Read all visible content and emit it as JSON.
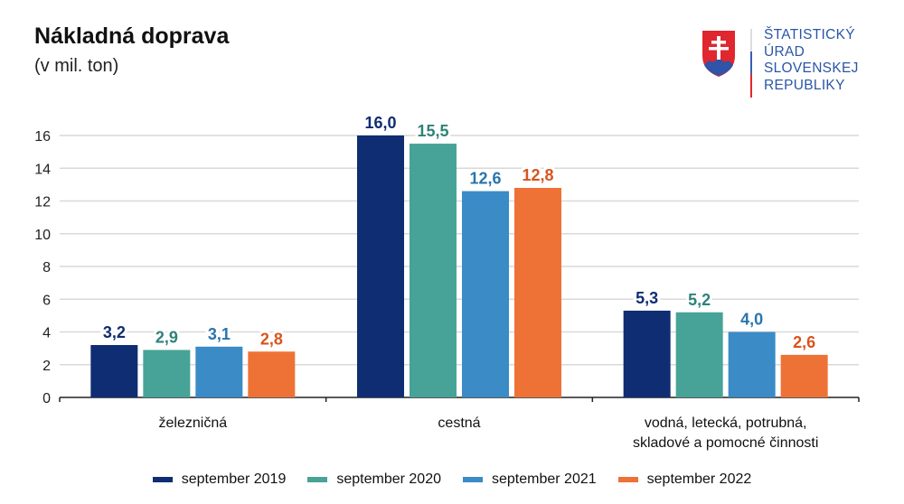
{
  "header": {
    "title": "Nákladná doprava",
    "subtitle": "(v mil. ton)"
  },
  "logo": {
    "icon": "slovak-coat-of-arms-icon",
    "lines": [
      "ŠTATISTICKÝ",
      "ÚRAD",
      "SLOVENSKEJ",
      "REPUBLIKY"
    ],
    "color": "#2a56a6"
  },
  "chart_data": {
    "type": "bar",
    "title": "Nákladná doprava",
    "subtitle": "(v mil. ton)",
    "xlabel": "",
    "ylabel": "",
    "ylim": [
      0,
      16
    ],
    "yticks": [
      0,
      2,
      4,
      6,
      8,
      10,
      12,
      14,
      16
    ],
    "grid": true,
    "legend_position": "bottom",
    "categories": [
      [
        "železničná"
      ],
      [
        "cestná"
      ],
      [
        "vodná, letecká, potrubná,",
        "skladové a pomocné činnosti"
      ]
    ],
    "series": [
      {
        "name": "september 2019",
        "color": "#0f2d72",
        "label_color": "#0f2d72",
        "values": [
          3.2,
          16.0,
          5.3
        ],
        "labels": [
          "3,2",
          "16,0",
          "5,3"
        ]
      },
      {
        "name": "september 2020",
        "color": "#47a397",
        "label_color": "#2e8378",
        "values": [
          2.9,
          15.5,
          5.2
        ],
        "labels": [
          "2,9",
          "15,5",
          "5,2"
        ]
      },
      {
        "name": "september 2021",
        "color": "#3a8bc6",
        "label_color": "#2a74ad",
        "values": [
          3.1,
          12.6,
          4.0
        ],
        "labels": [
          "3,1",
          "12,6",
          "4,0"
        ]
      },
      {
        "name": "september 2022",
        "color": "#ee7236",
        "label_color": "#d9541d",
        "values": [
          2.8,
          12.8,
          2.6
        ],
        "labels": [
          "2,8",
          "12,8",
          "2,6"
        ]
      }
    ]
  }
}
